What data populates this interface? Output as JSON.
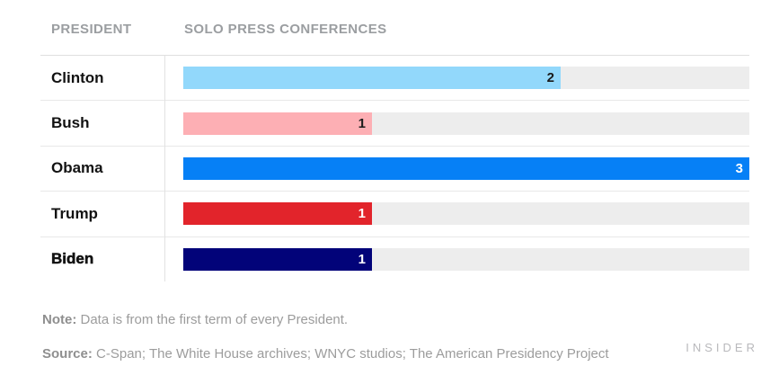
{
  "header": {
    "president_col": "PRESIDENT",
    "value_col": "SOLO PRESS CONFERENCES"
  },
  "chart_data": {
    "type": "bar",
    "orientation": "horizontal",
    "categories": [
      "Clinton",
      "Bush",
      "Obama",
      "Trump",
      "Biden"
    ],
    "values": [
      2,
      1,
      3,
      1,
      1
    ],
    "xlim": [
      0,
      3
    ],
    "xlabel": "SOLO PRESS CONFERENCES",
    "ylabel": "PRESIDENT",
    "grid": false,
    "legend": "none",
    "value_labels_shown": true,
    "bar_colors": [
      "#92D8FB",
      "#FDAFB4",
      "#0680F6",
      "#E2242B",
      "#020379"
    ],
    "value_label_colors": [
      "#1A1A1A",
      "#1A1A1A",
      "#FFFFFF",
      "#FFFFFF",
      "#FFFFFF"
    ],
    "track_color": "#EDEDED",
    "emphasized_category": "Biden"
  },
  "note": {
    "label": "Note:",
    "text": "Data is from the first term of every President."
  },
  "source": {
    "label": "Source:",
    "text": "C-Span; The White House archives; WNYC studios; The American Presidency Project"
  },
  "branding": {
    "wordmark": "INSIDER"
  }
}
